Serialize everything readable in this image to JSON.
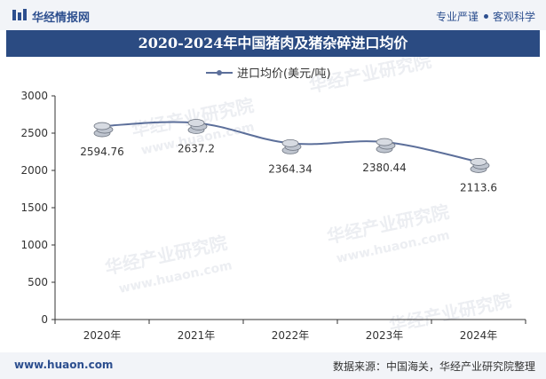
{
  "header": {
    "logo_text": "华经情报网",
    "slogan_left": "专业严谨",
    "slogan_right": "客观科学"
  },
  "title": "2020-2024年中国猪肉及猪杂碎进口均价",
  "footer": {
    "website": "www.huaon.com",
    "source": "数据来源：中国海关，华经产业研究院整理"
  },
  "watermark": {
    "text": "华经产业研究院",
    "url": "www.huaon.com"
  },
  "colors": {
    "brand": "#2b4b82",
    "line": "#5c6f9a",
    "axis": "#333333"
  },
  "chart_data": {
    "type": "line",
    "title": "2020-2024年中国猪肉及猪杂碎进口均价",
    "categories": [
      "2020年",
      "2021年",
      "2022年",
      "2023年",
      "2024年"
    ],
    "series": [
      {
        "name": "进口均价(美元/吨)",
        "values": [
          2594.76,
          2637.2,
          2364.34,
          2380.44,
          2113.6
        ],
        "labels": [
          "2594.76",
          "2637.2",
          "2364.34",
          "2380.44",
          "2113.6"
        ]
      }
    ],
    "ylim": [
      0,
      3000
    ],
    "yticks": [
      "0",
      "500",
      "1000",
      "1500",
      "2000",
      "2500",
      "3000"
    ],
    "ytick_values": [
      0,
      500,
      1000,
      1500,
      2000,
      2500,
      3000
    ],
    "legend": "top-center",
    "grid": false,
    "xlabel": "",
    "ylabel": ""
  }
}
